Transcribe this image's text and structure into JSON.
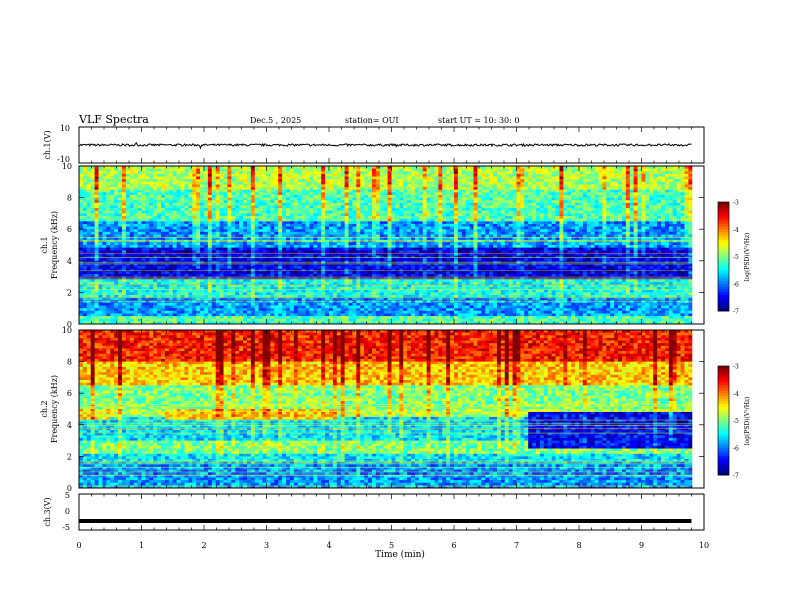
{
  "header": {
    "title": "VLF Spectra",
    "date": "Dec.5 , 2025",
    "station": "station= OUI",
    "start_ut": "start UT =   10: 30: 0"
  },
  "chart_data": {
    "type": "heatmap",
    "xlabel": "Time (min)",
    "xlim": [
      0,
      10
    ],
    "x_ticks": [
      "0",
      "1",
      "2",
      "3",
      "4",
      "5",
      "6",
      "7",
      "8",
      "9",
      "10"
    ],
    "panels": [
      {
        "id": "ch1-waveform",
        "ylabel": "ch.1(V)",
        "ylim": [
          -10,
          10
        ],
        "y_ticks": [
          "10",
          "-10"
        ],
        "trace": {
          "type": "line",
          "baseline_v": 0,
          "amplitude_v": 0.6,
          "x_range_min": [
            0,
            9.8
          ]
        }
      },
      {
        "id": "ch1-spectrogram",
        "ylabel_top": "ch.1",
        "ylabel_bottom": "Frequency (kHz)",
        "ylim": [
          0,
          10
        ],
        "y_ticks": [
          "0",
          "2",
          "4",
          "6",
          "8",
          "10"
        ],
        "colorbar": {
          "label": "log(PSD)(V²/Hz)",
          "ticks": [
            "-3",
            "-4",
            "-5",
            "-6",
            "-7"
          ],
          "range": [
            -7,
            -3
          ]
        },
        "bands_khz": [
          {
            "from": 0,
            "to": 0.5,
            "value": -5.2
          },
          {
            "from": 0.5,
            "to": 1.6,
            "value": -5.9
          },
          {
            "from": 1.6,
            "to": 2.9,
            "value": -5.4
          },
          {
            "from": 2.9,
            "to": 4.8,
            "value": -6.6
          },
          {
            "from": 4.8,
            "to": 6.5,
            "value": -5.9
          },
          {
            "from": 6.5,
            "to": 8.5,
            "value": -5.2
          },
          {
            "from": 8.5,
            "to": 10,
            "value": -4.8
          }
        ]
      },
      {
        "id": "ch2-spectrogram",
        "ylabel_top": "ch.2",
        "ylabel_bottom": "Frequency (kHz)",
        "ylim": [
          0,
          10
        ],
        "y_ticks": [
          "0",
          "2",
          "4",
          "6",
          "8",
          "10"
        ],
        "colorbar": {
          "label": "log(PSD)(V²/Hz)",
          "ticks": [
            "-3",
            "-4",
            "-5",
            "-6",
            "-7"
          ],
          "range": [
            -7,
            -3
          ]
        },
        "bands_khz": [
          {
            "from": 0,
            "to": 1.5,
            "value": -5.9
          },
          {
            "from": 1.5,
            "to": 2.2,
            "value": -5.6
          },
          {
            "from": 2.2,
            "to": 3.0,
            "value": -5.0
          },
          {
            "from": 3.0,
            "to": 4.5,
            "value": -5.6
          },
          {
            "from": 4.5,
            "to": 5.0,
            "value": -4.8
          },
          {
            "from": 5.0,
            "to": 6.5,
            "value": -5.0
          },
          {
            "from": 6.5,
            "to": 8.0,
            "value": -4.3
          },
          {
            "from": 8.0,
            "to": 10,
            "value": -3.6
          }
        ],
        "events": [
          {
            "x_from_min": 0,
            "x_to_min": 0.5,
            "freq_khz": 4.7,
            "value": -4.4
          },
          {
            "x_from_min": 1.35,
            "x_to_min": 4.15,
            "freq_khz": 4.7,
            "value": -4.4
          },
          {
            "x_from_min": 7.2,
            "x_to_min": 9.8,
            "freq_from_khz": 2.5,
            "freq_to_khz": 4.8,
            "value": -6.5
          }
        ]
      },
      {
        "id": "ch3-waveform",
        "ylabel": "ch.3(V)",
        "ylim": [
          -5,
          5
        ],
        "y_ticks": [
          "5",
          "0",
          "-5"
        ],
        "trace": {
          "type": "line",
          "baseline_v": -2.5,
          "amplitude_v": 0.2,
          "x_range_min": [
            0,
            9.8
          ]
        }
      }
    ]
  }
}
